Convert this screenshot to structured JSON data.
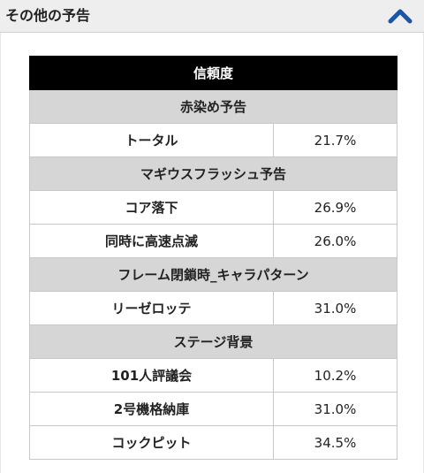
{
  "header": {
    "title": "その他の予告"
  },
  "icons": {
    "toggle": "chevron-up-icon",
    "toggle_color": "#1a56a8"
  },
  "table": {
    "title": "信頼度",
    "sections": [
      {
        "category": "赤染め予告",
        "items": [
          {
            "name": "トータル",
            "value": "21.7%"
          }
        ]
      },
      {
        "category": "マギウスフラッシュ予告",
        "items": [
          {
            "name": "コア落下",
            "value": "26.9%"
          },
          {
            "name": "同時に高速点滅",
            "value": "26.0%"
          }
        ]
      },
      {
        "category": "フレーム閉鎖時_キャラパターン",
        "items": [
          {
            "name": "リーゼロッテ",
            "value": "31.0%"
          }
        ]
      },
      {
        "category": "ステージ背景",
        "items": [
          {
            "name": "101人評議会",
            "value": "10.2%"
          },
          {
            "name": "2号機格納庫",
            "value": "31.0%"
          },
          {
            "name": "コックピット",
            "value": "34.5%"
          }
        ]
      }
    ]
  }
}
